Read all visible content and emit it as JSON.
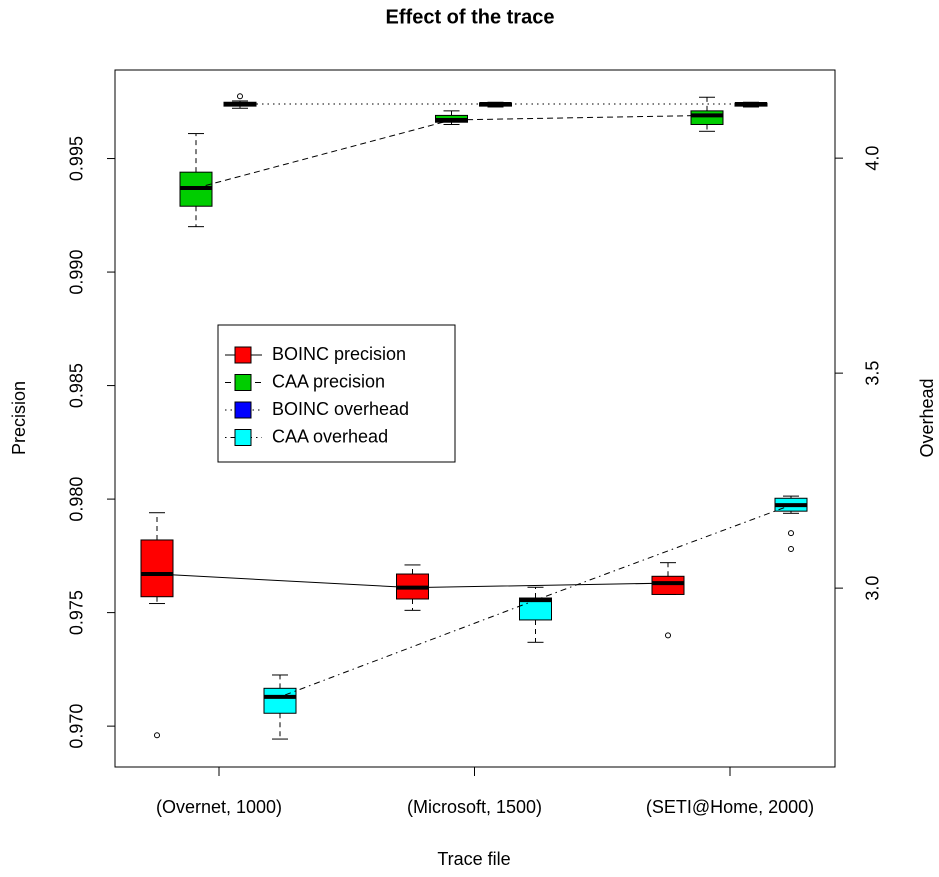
{
  "chart_data": {
    "type": "boxplot",
    "title": "Effect of the trace",
    "xlabel": "Trace file",
    "ylabel": "Precision",
    "y2label": "Overhead",
    "categories": [
      "(Overnet, 1000)",
      "(Microsoft, 1500)",
      "(SETI@Home, 2000)"
    ],
    "ylim": [
      0.9682,
      0.9989
    ],
    "yticks": [
      {
        "value": 0.97,
        "label": "0.970"
      },
      {
        "value": 0.975,
        "label": "0.975"
      },
      {
        "value": 0.98,
        "label": "0.980"
      },
      {
        "value": 0.985,
        "label": "0.985"
      },
      {
        "value": 0.99,
        "label": "0.990"
      },
      {
        "value": 0.995,
        "label": "0.995"
      }
    ],
    "y2lim": [
      2.584,
      4.205
    ],
    "y2ticks": [
      {
        "value": 3,
        "label": "3.0"
      },
      {
        "value": 3.5,
        "label": "3.5"
      },
      {
        "value": 4,
        "label": "4.0"
      }
    ],
    "series": [
      {
        "name": "BOINC precision",
        "color": "#ff0000",
        "linestyle": "solid",
        "axis": "y",
        "lower": [
          0.9754,
          0.9751,
          0.9758
        ],
        "q1": [
          0.9757,
          0.9756,
          0.9758
        ],
        "median": [
          0.9767,
          0.9761,
          0.9763
        ],
        "q3": [
          0.9782,
          0.9767,
          0.9766
        ],
        "upper": [
          0.9794,
          0.9771,
          0.9772
        ],
        "outliers": [
          [
            0.9696
          ],
          [],
          [
            0.974
          ]
        ]
      },
      {
        "name": "CAA precision",
        "color": "#00cd00",
        "linestyle": "dashed",
        "axis": "y",
        "lower": [
          0.992,
          0.9965,
          0.9962
        ],
        "q1": [
          0.9929,
          0.9966,
          0.9965
        ],
        "median": [
          0.9937,
          0.9967,
          0.9969
        ],
        "q3": [
          0.9944,
          0.9969,
          0.9971
        ],
        "upper": [
          0.9961,
          0.9971,
          0.9977
        ],
        "outliers": [
          [],
          [],
          []
        ]
      },
      {
        "name": "BOINC overhead",
        "color": "#0000ff",
        "linestyle": "dotted",
        "axis": "y2",
        "lower": [
          4.116,
          4.119,
          4.119
        ],
        "q1": [
          4.121,
          4.121,
          4.121
        ],
        "median": [
          4.126,
          4.126,
          4.126
        ],
        "q3": [
          4.13,
          4.128,
          4.128
        ],
        "upper": [
          4.133,
          4.13,
          4.13
        ],
        "outliers": [
          [
            4.144
          ],
          [],
          []
        ]
      },
      {
        "name": "CAA overhead",
        "color": "#00ffff",
        "linestyle": "dotdash",
        "axis": "y2",
        "lower": [
          2.649,
          2.874,
          3.174
        ],
        "q1": [
          2.709,
          2.926,
          3.179
        ],
        "median": [
          2.747,
          2.972,
          3.193
        ],
        "q3": [
          2.767,
          2.977,
          3.209
        ],
        "upper": [
          2.798,
          3.002,
          3.214
        ],
        "outliers": [
          [],
          [],
          [
            3.128,
            3.091
          ]
        ]
      }
    ]
  }
}
